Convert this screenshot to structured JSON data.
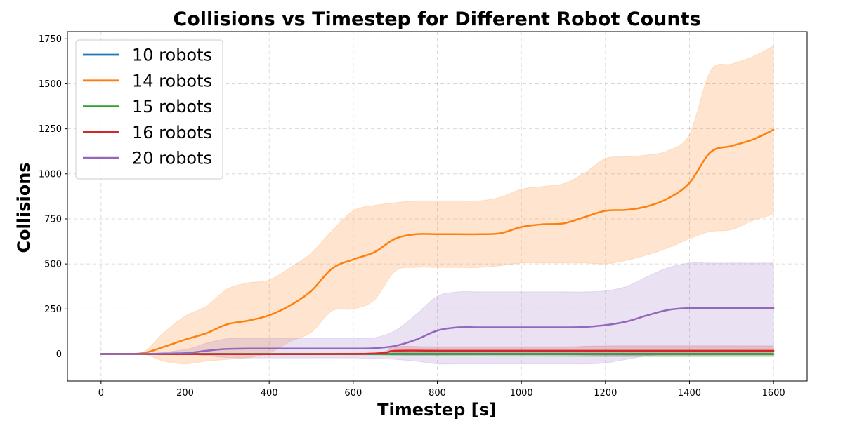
{
  "chart_data": {
    "type": "line",
    "title": "Collisions vs Timestep for Different Robot Counts",
    "xlabel": "Timestep [s]",
    "ylabel": "Collisions",
    "xlim": [
      -80,
      1680
    ],
    "ylim": [
      -150,
      1790
    ],
    "xticks": [
      0,
      200,
      400,
      600,
      800,
      1000,
      1200,
      1400,
      1600
    ],
    "yticks": [
      0,
      250,
      500,
      750,
      1000,
      1250,
      1500,
      1750
    ],
    "grid": true,
    "legend": "top-left",
    "series": [
      {
        "name": "10 robots",
        "color": "#1f77b4",
        "x": [
          0,
          400,
          800,
          1200,
          1600
        ],
        "y": [
          0,
          0,
          0,
          0,
          0
        ],
        "lower": [
          0,
          0,
          0,
          0,
          0
        ],
        "upper": [
          0,
          0,
          0,
          0,
          0
        ]
      },
      {
        "name": "14 robots",
        "color": "#ff7f0e",
        "x": [
          0,
          50,
          100,
          150,
          200,
          250,
          300,
          350,
          400,
          450,
          500,
          550,
          600,
          650,
          700,
          750,
          800,
          850,
          900,
          950,
          1000,
          1050,
          1100,
          1150,
          1200,
          1250,
          1300,
          1350,
          1400,
          1450,
          1500,
          1550,
          1600
        ],
        "y": [
          0,
          0,
          5,
          40,
          80,
          115,
          165,
          185,
          215,
          270,
          350,
          475,
          525,
          565,
          640,
          665,
          665,
          665,
          665,
          670,
          705,
          720,
          725,
          760,
          795,
          800,
          820,
          865,
          950,
          1120,
          1155,
          1190,
          1245
        ],
        "lower": [
          0,
          0,
          0,
          -40,
          -55,
          -40,
          -30,
          -20,
          5,
          70,
          120,
          240,
          250,
          300,
          460,
          480,
          480,
          480,
          480,
          490,
          505,
          505,
          505,
          505,
          500,
          520,
          550,
          590,
          640,
          680,
          690,
          740,
          775
        ],
        "upper": [
          0,
          0,
          10,
          120,
          210,
          265,
          360,
          395,
          410,
          480,
          560,
          685,
          795,
          825,
          840,
          850,
          850,
          850,
          850,
          870,
          915,
          930,
          945,
          1005,
          1085,
          1095,
          1105,
          1130,
          1220,
          1570,
          1610,
          1650,
          1710
        ]
      },
      {
        "name": "15 robots",
        "color": "#2ca02c",
        "x": [
          0,
          400,
          800,
          1200,
          1600
        ],
        "y": [
          0,
          0,
          0,
          0,
          0
        ],
        "lower": [
          0,
          0,
          -10,
          -15,
          -15
        ],
        "upper": [
          0,
          0,
          10,
          15,
          15
        ]
      },
      {
        "name": "16 robots",
        "color": "#d62728",
        "x": [
          0,
          600,
          700,
          800,
          1100,
          1200,
          1600
        ],
        "y": [
          0,
          0,
          18,
          18,
          18,
          18,
          18
        ],
        "lower": [
          0,
          0,
          -5,
          -5,
          -5,
          -8,
          -8
        ],
        "upper": [
          0,
          0,
          40,
          40,
          40,
          45,
          45
        ]
      },
      {
        "name": "20 robots",
        "color": "#9467bd",
        "x": [
          0,
          100,
          200,
          250,
          300,
          350,
          400,
          500,
          600,
          650,
          700,
          750,
          800,
          850,
          900,
          1000,
          1100,
          1150,
          1200,
          1250,
          1300,
          1350,
          1400,
          1450,
          1500,
          1600
        ],
        "y": [
          0,
          0,
          5,
          18,
          28,
          30,
          30,
          30,
          30,
          32,
          45,
          80,
          130,
          148,
          148,
          148,
          148,
          150,
          160,
          180,
          215,
          245,
          255,
          255,
          255,
          255
        ],
        "lower": [
          0,
          0,
          0,
          -10,
          -20,
          -22,
          -22,
          -22,
          -22,
          -25,
          -30,
          -40,
          -55,
          -55,
          -55,
          -55,
          -55,
          -55,
          -50,
          -30,
          -10,
          0,
          0,
          0,
          0,
          0
        ],
        "upper": [
          0,
          0,
          25,
          60,
          85,
          88,
          88,
          88,
          88,
          90,
          130,
          220,
          320,
          345,
          345,
          345,
          345,
          345,
          350,
          375,
          430,
          480,
          505,
          505,
          505,
          505
        ]
      }
    ]
  }
}
